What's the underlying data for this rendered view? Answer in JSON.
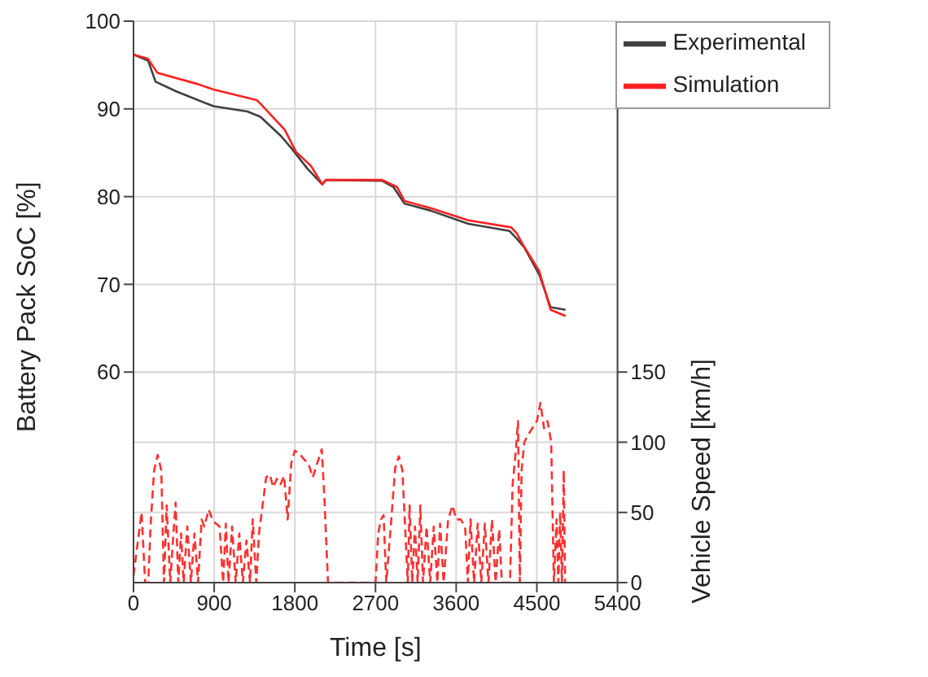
{
  "chart_data": {
    "type": "line",
    "xlabel": "Time [s]",
    "ylabel": "Battery Pack SoC [%]",
    "y2label": "Vehicle Speed [km/h]",
    "xlim": [
      0,
      5400
    ],
    "xticks": [
      0,
      900,
      1800,
      2700,
      3600,
      4500,
      5400
    ],
    "ylim": [
      36,
      100
    ],
    "yticks": [
      60,
      70,
      80,
      90,
      100
    ],
    "y2lim": [
      0,
      400
    ],
    "y2ticks": [
      0,
      50,
      100,
      150
    ],
    "grid": true,
    "legend": "top right",
    "marker": "none",
    "line_style": "solid",
    "series": [
      {
        "name": "Experimental",
        "color": "#404040",
        "x": [
          0,
          163,
          246,
          476,
          893,
          1270,
          1416,
          1646,
          1771,
          1939,
          2106,
          2147,
          2773,
          2899,
          3024,
          3316,
          3734,
          4193,
          4277,
          4360,
          4527,
          4653,
          4820
        ],
        "values": [
          96.2,
          95.5,
          93.1,
          92.0,
          90.3,
          89.7,
          89.1,
          86.9,
          85.4,
          83.2,
          81.4,
          81.9,
          81.8,
          81.1,
          79.2,
          78.4,
          76.9,
          76.1,
          75.2,
          74.2,
          71.1,
          67.4,
          67.1
        ]
      },
      {
        "name": "Simulation",
        "color": "#ff2020",
        "x": [
          0,
          163,
          267,
          726,
          893,
          1374,
          1416,
          1688,
          1813,
          1980,
          2106,
          2147,
          2773,
          2940,
          3024,
          3316,
          3734,
          4214,
          4277,
          4340,
          4527,
          4653,
          4820
        ],
        "values": [
          96.2,
          95.7,
          94.1,
          92.8,
          92.2,
          91.0,
          90.6,
          87.6,
          85.1,
          83.5,
          81.4,
          81.9,
          81.9,
          81.1,
          79.5,
          78.7,
          77.3,
          76.5,
          75.8,
          74.6,
          71.5,
          67.1,
          66.4
        ]
      },
      {
        "color": "#ff3030",
        "axis": "y2",
        "line_style": "dashed",
        "x": [
          0,
          50,
          90,
          130,
          165,
          190,
          230,
          270,
          310,
          340,
          370,
          410,
          440,
          470,
          500,
          530,
          560,
          600,
          640,
          680,
          720,
          760,
          790,
          840,
          880,
          920,
          960,
          1000,
          1030,
          1060,
          1100,
          1140,
          1180,
          1220,
          1260,
          1300,
          1330,
          1370,
          1400,
          1430,
          1480,
          1520,
          1560,
          1600,
          1640,
          1680,
          1720,
          1760,
          1800,
          1850,
          1900,
          1950,
          2000,
          2050,
          2100,
          2130,
          2170,
          2700,
          2730,
          2760,
          2790,
          2820,
          2870,
          2920,
          2960,
          3000,
          3030,
          3060,
          3080,
          3110,
          3140,
          3170,
          3200,
          3230,
          3270,
          3310,
          3350,
          3390,
          3420,
          3460,
          3510,
          3560,
          3600,
          3650,
          3700,
          3730,
          3760,
          3800,
          3840,
          3880,
          3920,
          3960,
          4000,
          4040,
          4080,
          4110,
          4200,
          4230,
          4260,
          4290,
          4310,
          4330,
          4360,
          4400,
          4450,
          4500,
          4540,
          4580,
          4620,
          4660,
          4690,
          4720,
          4740,
          4760,
          4780,
          4800,
          4815
        ],
        "values": [
          5,
          30,
          50,
          0,
          0,
          40,
          80,
          91,
          80,
          0,
          55,
          0,
          30,
          57,
          0,
          35,
          0,
          40,
          0,
          35,
          0,
          45,
          40,
          52,
          45,
          42,
          40,
          0,
          42,
          0,
          40,
          0,
          35,
          0,
          30,
          0,
          45,
          0,
          35,
          50,
          75,
          77,
          68,
          74,
          70,
          76,
          45,
          85,
          94,
          92,
          88,
          85,
          75,
          85,
          95,
          60,
          0,
          0,
          35,
          45,
          48,
          0,
          40,
          82,
          90,
          80,
          40,
          0,
          55,
          0,
          40,
          0,
          55,
          0,
          40,
          0,
          40,
          0,
          42,
          0,
          45,
          55,
          45,
          45,
          40,
          0,
          45,
          0,
          42,
          0,
          42,
          0,
          45,
          0,
          38,
          0,
          0,
          70,
          90,
          115,
          0,
          80,
          100,
          105,
          110,
          115,
          128,
          110,
          115,
          100,
          0,
          45,
          0,
          50,
          0,
          80,
          0
        ]
      }
    ]
  }
}
